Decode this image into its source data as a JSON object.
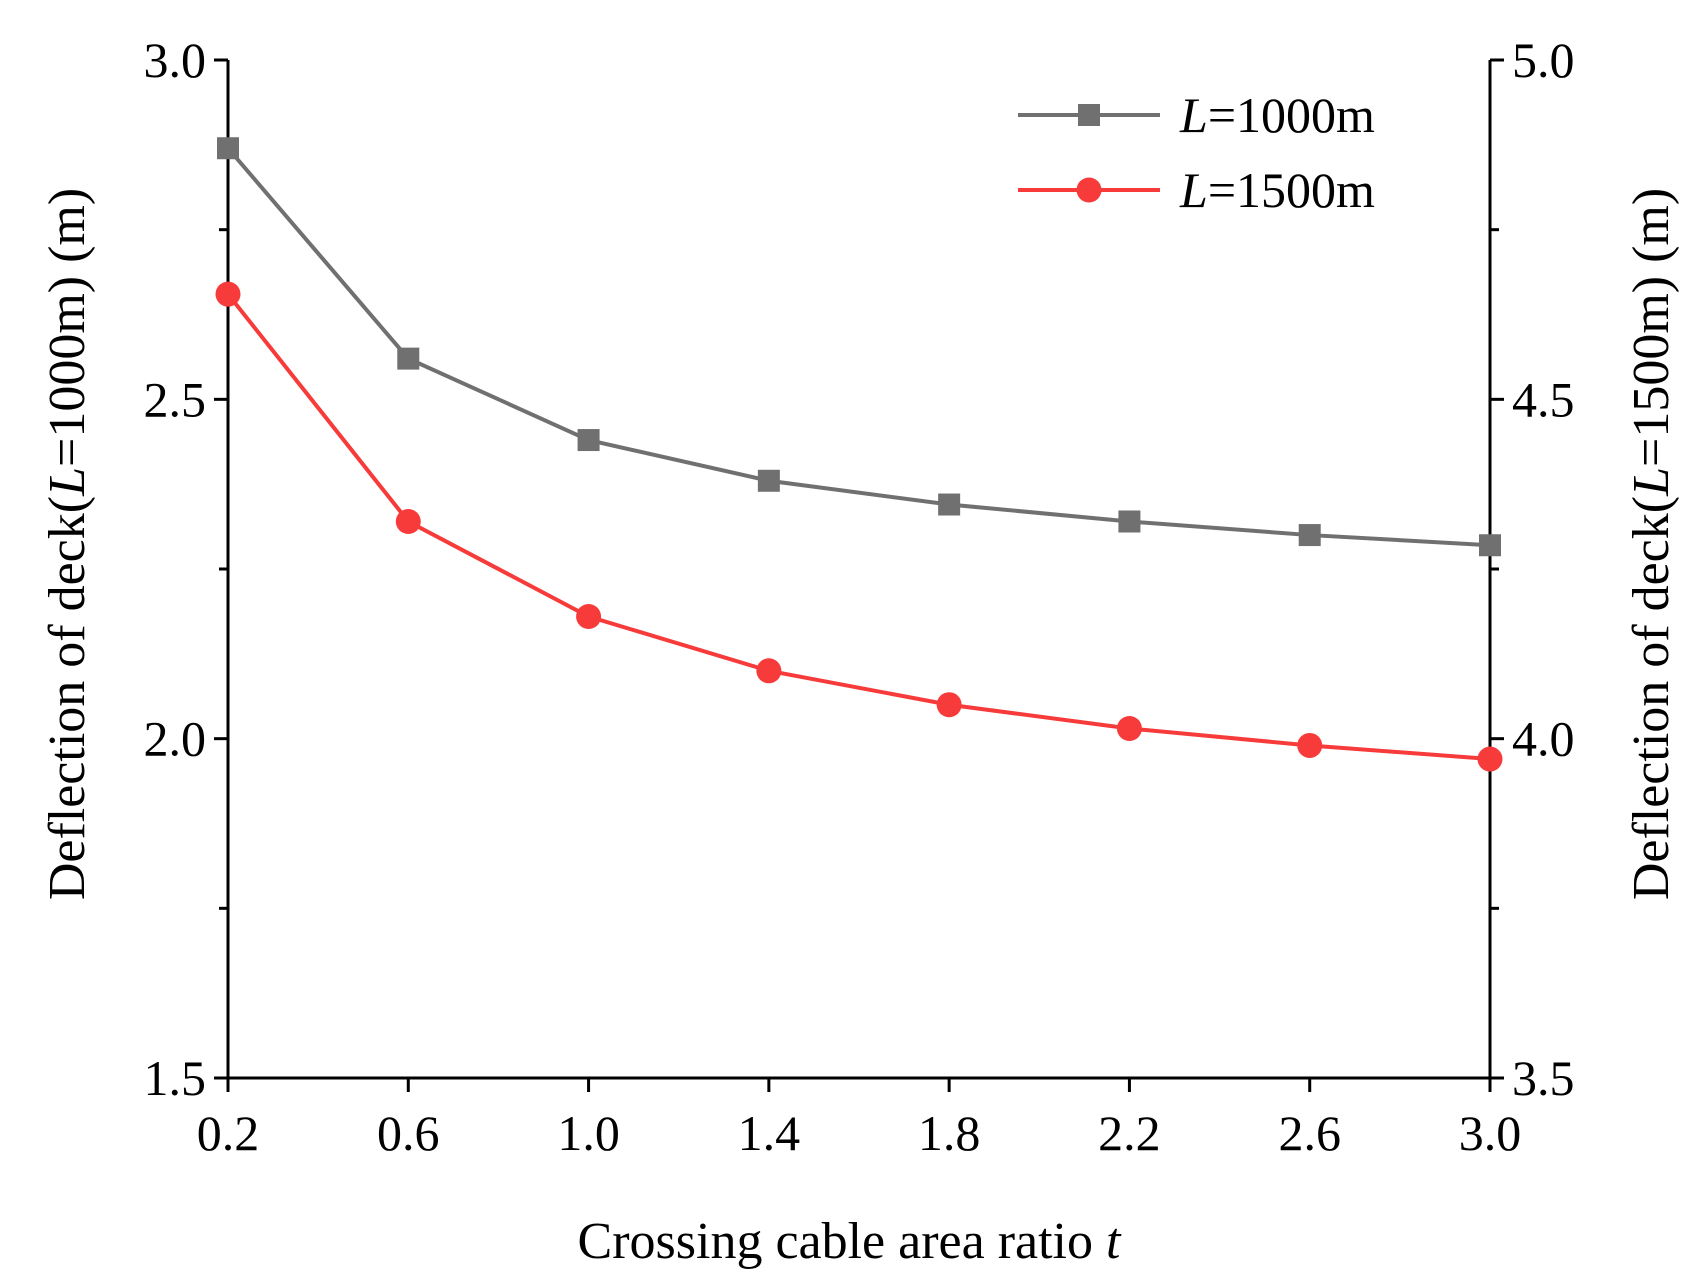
{
  "chart_data": {
    "type": "line",
    "x": [
      0.2,
      0.6,
      1.0,
      1.4,
      1.8,
      2.2,
      2.6,
      3.0
    ],
    "xlim": [
      0.2,
      3.0
    ],
    "x_ticks": [
      "0.2",
      "0.6",
      "1.0",
      "1.4",
      "1.8",
      "2.2",
      "2.6",
      "3.0"
    ],
    "xlabel_prefix": "Crossing cable area ratio ",
    "xlabel_var": "t",
    "y_left": {
      "lim": [
        1.5,
        3.0
      ],
      "ticks": [
        "1.5",
        "2.0",
        "2.5",
        "3.0"
      ],
      "label_prefix": "Deflection of deck(",
      "label_var": "L",
      "label_suffix": "=1000m) (m)"
    },
    "y_right": {
      "lim": [
        3.5,
        5.0
      ],
      "ticks": [
        "3.5",
        "4.0",
        "4.5",
        "5.0"
      ],
      "label_prefix": "Deflection of deck(",
      "label_var": "L",
      "label_suffix": "=1500m) (m)"
    },
    "series": [
      {
        "name_var": "L",
        "name_suffix": "=1000m",
        "axis": "left",
        "marker": "square",
        "color": "#707070",
        "values": [
          2.87,
          2.56,
          2.44,
          2.38,
          2.345,
          2.32,
          2.3,
          2.285
        ]
      },
      {
        "name_var": "L",
        "name_suffix": "=1500m",
        "axis": "right",
        "marker": "circle",
        "color": "#f73b3b",
        "values": [
          4.655,
          4.32,
          4.18,
          4.1,
          4.05,
          4.015,
          3.99,
          3.97
        ]
      }
    ],
    "legend_position": "top-right",
    "grid": false
  }
}
